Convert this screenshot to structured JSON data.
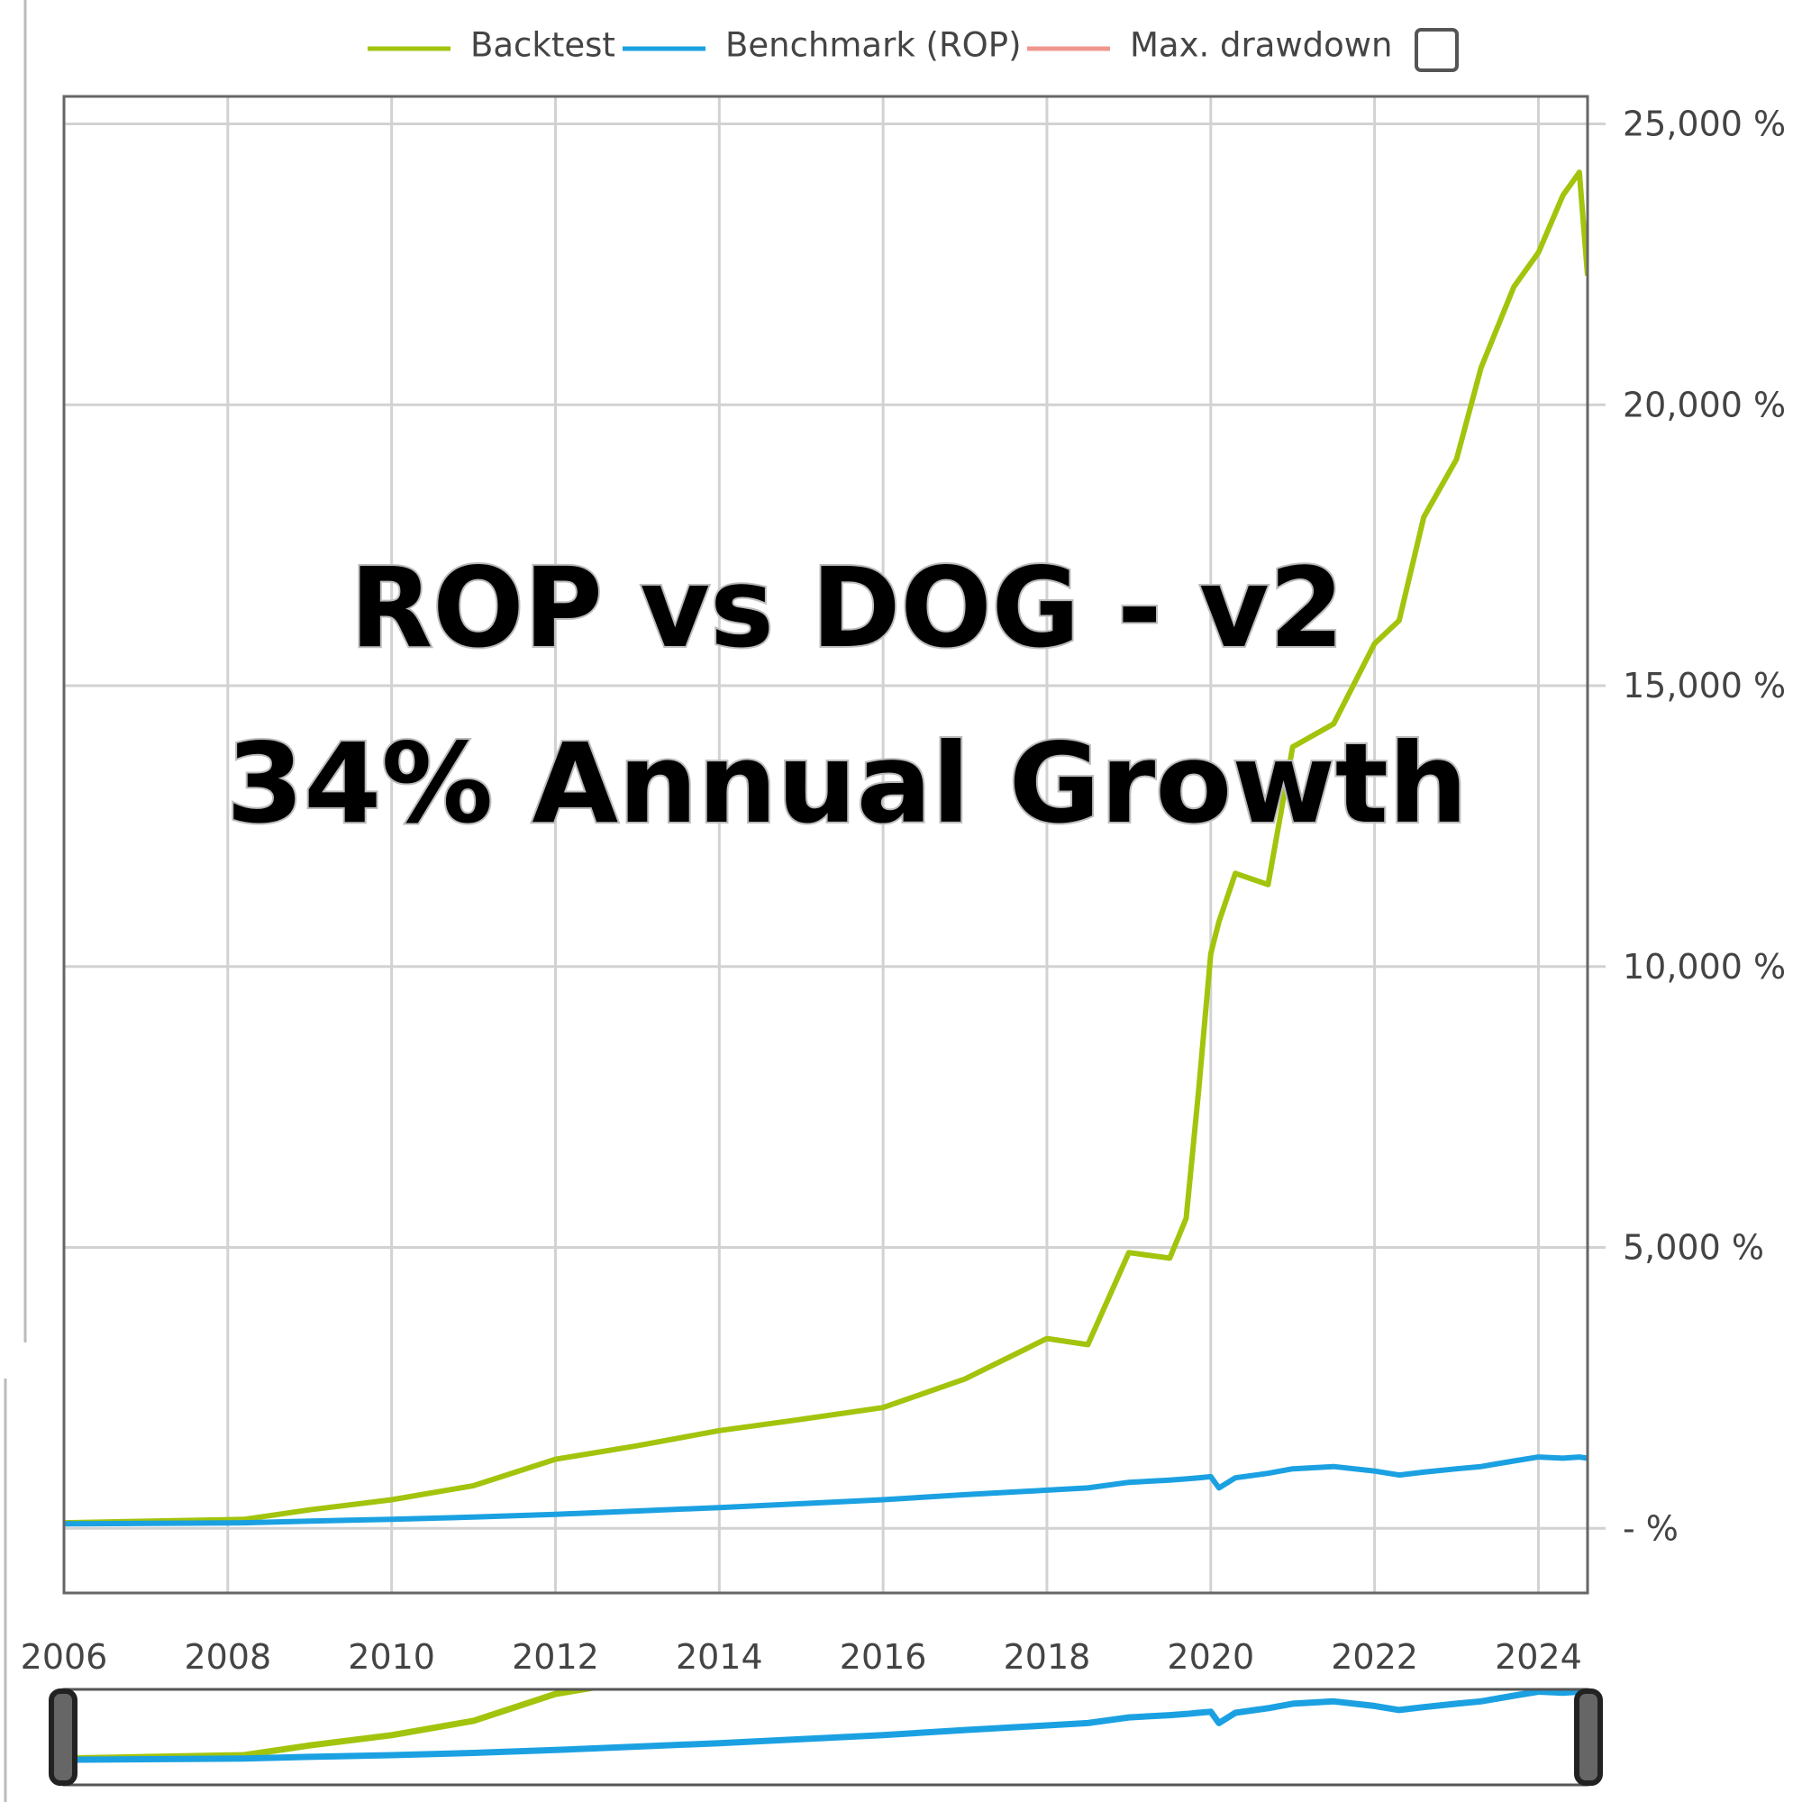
{
  "chart_data": {
    "type": "line",
    "title": "ROP vs DOG - v2",
    "subtitle": "34% Annual Growth",
    "x": [
      2006,
      2008.2,
      2009,
      2010,
      2011,
      2012,
      2013,
      2014,
      2015,
      2016,
      2017,
      2018,
      2018.5,
      2019,
      2019.5,
      2019.7,
      2019.85,
      2020,
      2020.1,
      2020.3,
      2020.7,
      2021,
      2021.5,
      2022,
      2022.3,
      2022.6,
      2023,
      2023.3,
      2023.7,
      2024,
      2024.3,
      2024.5,
      2024.6
    ],
    "series": [
      {
        "name": "Backtest",
        "color": "#a2c40c",
        "values": [
          100,
          160,
          330,
          510,
          760,
          1230,
          1470,
          1740,
          1940,
          2150,
          2660,
          3380,
          3270,
          4910,
          4810,
          5520,
          7770,
          10230,
          10800,
          11660,
          11460,
          13910,
          14320,
          15750,
          16160,
          18000,
          19030,
          20660,
          22100,
          22710,
          23730,
          24140,
          22300
        ]
      },
      {
        "name": "Benchmark (ROP)",
        "color": "#1ba1e2",
        "values": [
          80,
          100,
          130,
          160,
          200,
          250,
          310,
          370,
          440,
          510,
          600,
          680,
          720,
          820,
          860,
          880,
          900,
          920,
          720,
          900,
          980,
          1060,
          1100,
          1020,
          950,
          1000,
          1060,
          1100,
          1200,
          1270,
          1250,
          1270,
          1250
        ]
      },
      {
        "name": "Max. drawdown",
        "color": "#f0968f",
        "values": [
          null,
          null,
          null,
          null,
          null,
          null,
          null,
          null,
          null,
          null,
          null,
          null,
          null,
          null,
          null,
          null,
          null,
          null,
          null,
          null,
          null,
          null,
          null,
          null,
          null,
          null,
          null,
          null,
          null,
          null,
          null,
          null,
          null
        ]
      }
    ],
    "xlim": [
      2006,
      2024.6
    ],
    "xticks": [
      2006,
      2008,
      2010,
      2012,
      2014,
      2016,
      2018,
      2020,
      2022,
      2024
    ],
    "ylim": [
      -1150,
      25490
    ],
    "yticks": [
      {
        "value": 0,
        "label": "- %"
      },
      {
        "value": 5000,
        "label": "5,000 %"
      },
      {
        "value": 10000,
        "label": "10,000 %"
      },
      {
        "value": 15000,
        "label": "15,000 %"
      },
      {
        "value": 20000,
        "label": "20,000 %"
      },
      {
        "value": 25000,
        "label": "25,000 %"
      }
    ],
    "grid": true,
    "legend": "top",
    "navigator": {
      "ylim": [
        -360,
        1310
      ]
    }
  }
}
